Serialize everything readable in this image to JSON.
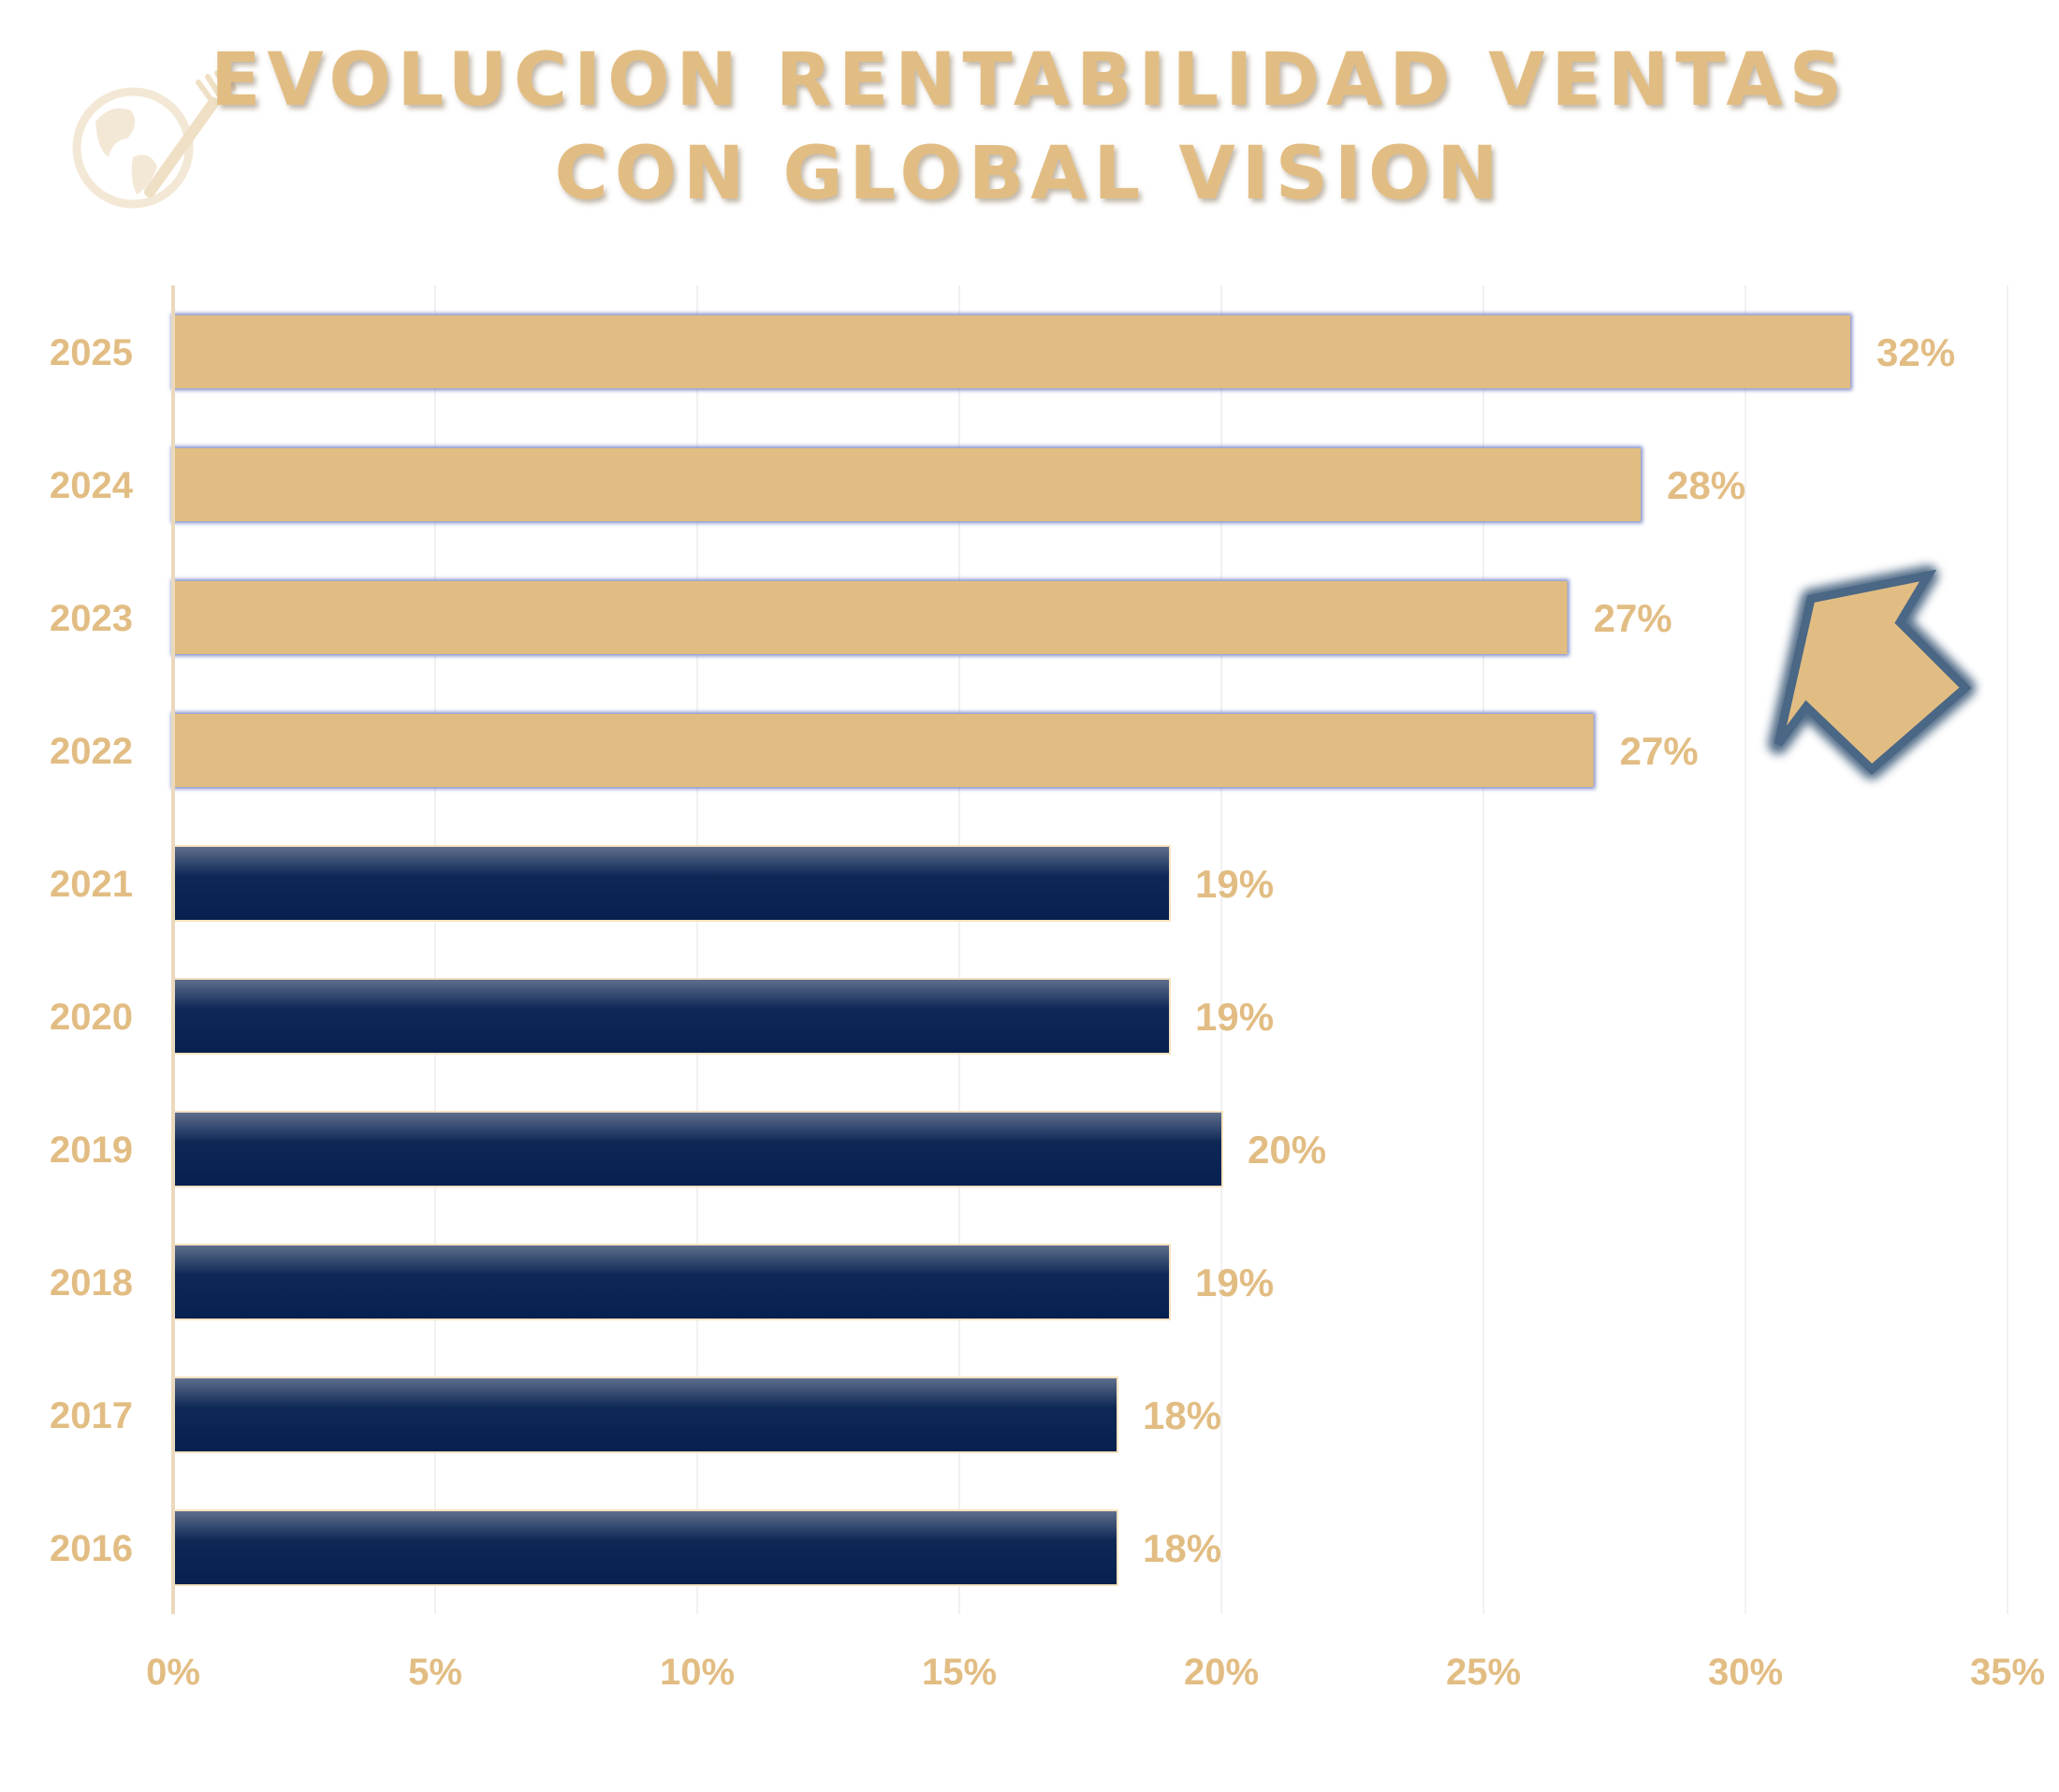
{
  "colors": {
    "accent_gold": "#e2bd83",
    "navy": "#0b2352",
    "arrow_stroke": "#4a6785"
  },
  "logo": {
    "icon": "globe-fork-icon"
  },
  "chart_data": {
    "type": "bar",
    "orientation": "horizontal",
    "title": "EVOLUCION RENTABILIDAD VENTAS CON GLOBAL VISION",
    "title_lines": [
      "EVOLUCION RENTABILIDAD VENTAS",
      "CON GLOBAL VISION"
    ],
    "categories": [
      "2025",
      "2024",
      "2023",
      "2022",
      "2021",
      "2020",
      "2019",
      "2018",
      "2017",
      "2016"
    ],
    "values": [
      32,
      28,
      26.6,
      27.1,
      19,
      19,
      20,
      19,
      18,
      18
    ],
    "value_labels": [
      "32%",
      "28%",
      "27%",
      "27%",
      "19%",
      "19%",
      "20%",
      "19%",
      "18%",
      "18%"
    ],
    "highlight": [
      true,
      true,
      true,
      true,
      false,
      false,
      false,
      false,
      false,
      false
    ],
    "xlim": [
      0,
      35
    ],
    "xticks": [
      0,
      5,
      10,
      15,
      20,
      25,
      30,
      35
    ],
    "xtick_labels": [
      "0%",
      "5%",
      "10%",
      "15%",
      "20%",
      "25%",
      "30%",
      "35%"
    ],
    "xlabel": "",
    "ylabel": "",
    "grid": true,
    "legend": "none",
    "annotation": "upward arrow pointing toward recent years"
  }
}
